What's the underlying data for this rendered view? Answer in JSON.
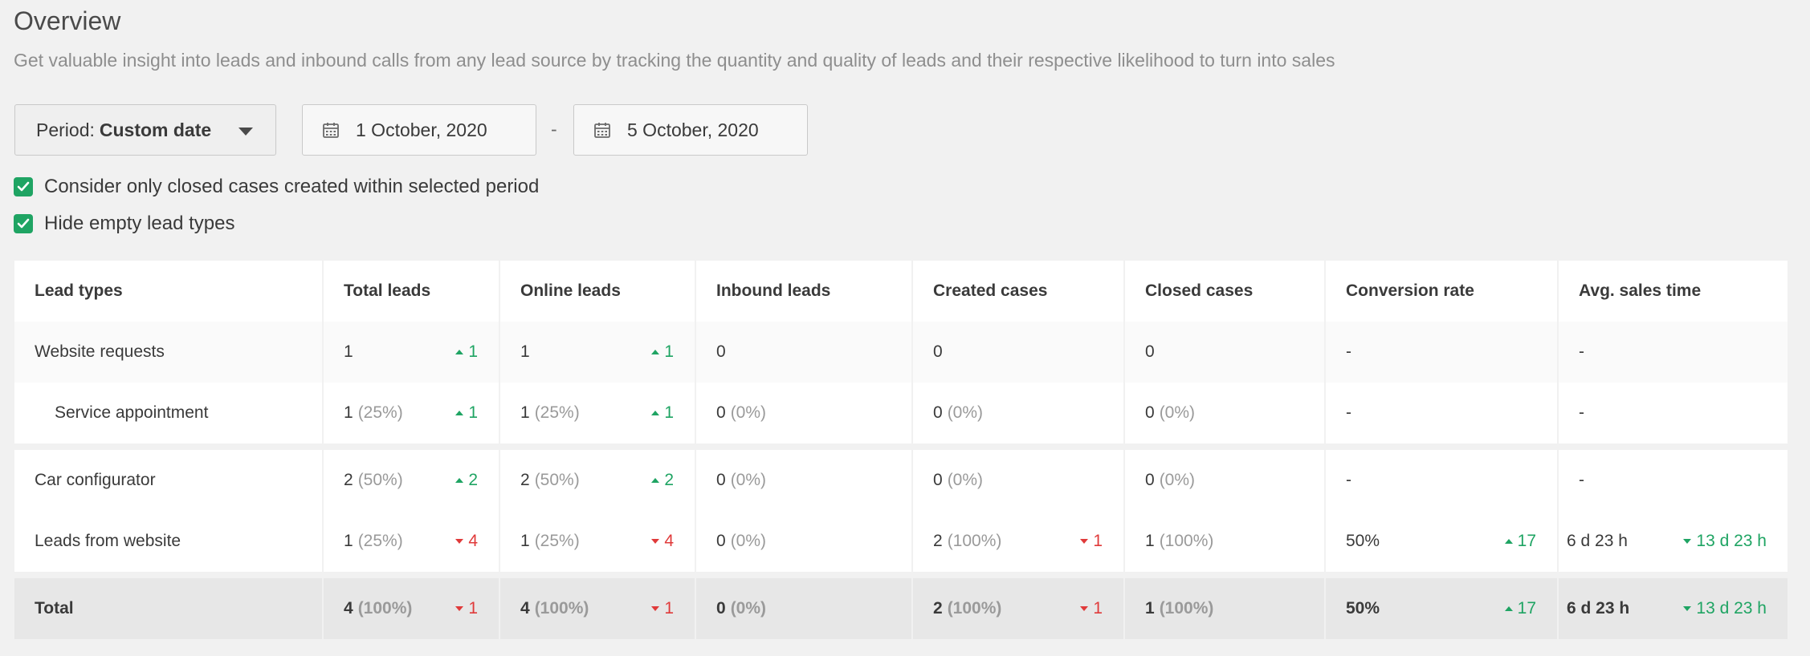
{
  "header": {
    "title": "Overview",
    "subtitle": "Get valuable insight into leads and inbound calls from any lead source by tracking the quantity and quality of leads and their respective likelihood to turn into sales"
  },
  "filters": {
    "period_label": "Period:",
    "period_value": "Custom date",
    "date_from": "1 October, 2020",
    "date_separator": "-",
    "date_to": "5 October, 2020",
    "checkbox_closed_cases": "Consider only closed cases created within selected period",
    "checkbox_hide_empty": "Hide empty lead types",
    "checkbox_closed_checked": true,
    "checkbox_hide_checked": true
  },
  "colors": {
    "accent": "#1fa463",
    "negative": "#e03a3a"
  },
  "table": {
    "columns": [
      "Lead types",
      "Total leads",
      "Online leads",
      "Inbound leads",
      "Created cases",
      "Closed cases",
      "Conversion rate",
      "Avg. sales time"
    ],
    "rows": [
      {
        "lead_type": "Website requests",
        "total": "1",
        "total_pct": "",
        "total_trend": "1",
        "online": "1",
        "online_pct": "",
        "online_trend": "1",
        "inbound": "0",
        "inbound_pct": "",
        "created": "0",
        "created_pct": "",
        "closed": "0",
        "closed_pct": "",
        "conversion": "-",
        "avg_time": "-"
      },
      {
        "lead_type": "Service appointment",
        "total": "1",
        "total_pct": "(25%)",
        "total_trend": "1",
        "online": "1",
        "online_pct": "(25%)",
        "online_trend": "1",
        "inbound": "0",
        "inbound_pct": "(0%)",
        "created": "0",
        "created_pct": "(0%)",
        "closed": "0",
        "closed_pct": "(0%)",
        "conversion": "-",
        "avg_time": "-"
      },
      {
        "lead_type": "Car configurator",
        "total": "2",
        "total_pct": "(50%)",
        "total_trend": "2",
        "online": "2",
        "online_pct": "(50%)",
        "online_trend": "2",
        "inbound": "0",
        "inbound_pct": "(0%)",
        "created": "0",
        "created_pct": "(0%)",
        "closed": "0",
        "closed_pct": "(0%)",
        "conversion": "-",
        "avg_time": "-"
      },
      {
        "lead_type": "Leads from website",
        "total": "1",
        "total_pct": "(25%)",
        "total_trend": "4",
        "online": "1",
        "online_pct": "(25%)",
        "online_trend": "4",
        "inbound": "0",
        "inbound_pct": "(0%)",
        "created": "2",
        "created_pct": "(100%)",
        "created_trend": "1",
        "closed": "1",
        "closed_pct": "(100%)",
        "conversion": "50%",
        "conversion_trend": "17",
        "avg_time": "6 d 23 h",
        "avg_time_trend": "13 d 23 h"
      }
    ],
    "total": {
      "label": "Total",
      "total": "4",
      "total_pct": "(100%)",
      "total_trend": "1",
      "online": "4",
      "online_pct": "(100%)",
      "online_trend": "1",
      "inbound": "0",
      "inbound_pct": "(0%)",
      "created": "2",
      "created_pct": "(100%)",
      "created_trend": "1",
      "closed": "1",
      "closed_pct": "(100%)",
      "conversion": "50%",
      "conversion_trend": "17",
      "avg_time": "6 d 23 h",
      "avg_time_trend": "13 d 23 h"
    }
  }
}
